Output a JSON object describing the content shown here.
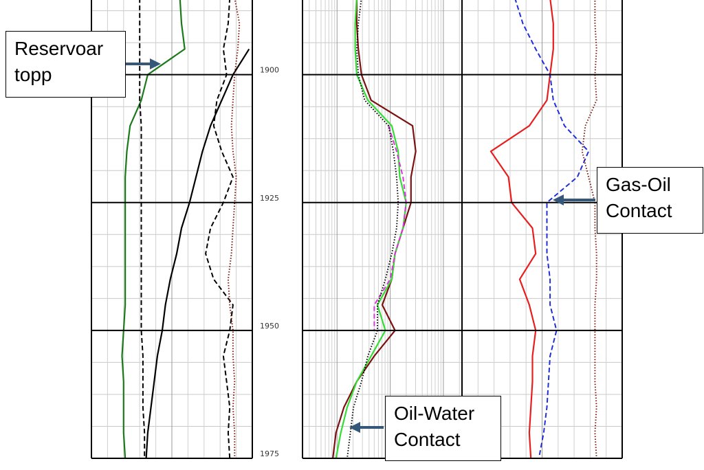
{
  "chart_data": {
    "type": "well-log",
    "ylim": [
      1975,
      1885
    ],
    "yticks": [
      1900,
      1925,
      1950,
      1975
    ],
    "grid": true,
    "depths": [
      1885,
      1890,
      1895,
      1900,
      1905,
      1910,
      1915,
      1920,
      1925,
      1930,
      1935,
      1940,
      1945,
      1950,
      1955,
      1960,
      1965,
      1970,
      1975
    ],
    "tracks": [
      {
        "xlim": [
          0,
          100
        ],
        "scale": "linear",
        "series": [
          {
            "color": "#1a7a1a",
            "style": "solid",
            "values": [
              55,
              56,
              58,
              35,
              31,
              24,
              22,
              21,
              21,
              21,
              21,
              21,
              21,
              20,
              19,
              20,
              20,
              20,
              21
            ]
          },
          {
            "color": "#000000",
            "style": "dashed",
            "values": [
              30,
              30,
              30,
              30,
              30,
              31,
              31,
              31,
              31,
              31,
              31,
              31,
              31,
              31,
              32,
              32,
              32,
              33,
              33
            ]
          },
          {
            "color": "#000000",
            "style": "solid",
            "values": [
              null,
              null,
              98,
              88,
              81,
              74,
              69,
              65,
              61,
              56,
              53,
              49,
              46,
              44,
              41,
              39,
              37,
              35,
              34
            ]
          },
          {
            "color": "#000000",
            "style": "dashed",
            "values": [
              86,
              85,
              82,
              84,
              78,
              76,
              81,
              88,
              82,
              74,
              71,
              76,
              88,
              86,
              82,
              84,
              86,
              85,
              86
            ]
          },
          {
            "color": "#7a1a10",
            "style": "dotted",
            "values": [
              89,
              92,
              91,
              89,
              88,
              87,
              88,
              90,
              89,
              88,
              87,
              85,
              86,
              88,
              88,
              89,
              88,
              89,
              89
            ]
          }
        ]
      },
      {
        "xlim": [
          0,
          100
        ],
        "scale": "log",
        "series": [
          {
            "color": "#7a1010",
            "style": "solid",
            "values": [
              34,
              34,
              35,
              37,
              43,
              69,
              71,
              68,
              68,
              63,
              58,
              56,
              50,
              58,
              45,
              34,
              26,
              21,
              19
            ]
          },
          {
            "color": "#33dd33",
            "style": "solid",
            "values": [
              34,
              33,
              33,
              34,
              41,
              56,
              60,
              61,
              65,
              63,
              58,
              56,
              47,
              52,
              43,
              34,
              28,
              24,
              21
            ]
          },
          {
            "color": "#dd33dd",
            "style": "dashed",
            "values": [
              null,
              null,
              null,
              null,
              null,
              54,
              59,
              63,
              65,
              63,
              58,
              55,
              45,
              45,
              null,
              null,
              null,
              null,
              null
            ]
          },
          {
            "color": "#000000",
            "style": "dotted",
            "values": [
              37,
              35,
              34,
              35,
              39,
              54,
              57,
              59,
              60,
              59,
              56,
              52,
              47,
              47,
              41,
              37,
              32,
              30,
              28
            ]
          }
        ]
      },
      {
        "xlim": [
          0,
          100
        ],
        "scale": "linear",
        "series": [
          {
            "color": "#e81e1e",
            "style": "solid",
            "values": [
              55,
              57,
              57,
              55,
              53,
              42,
              18,
              29,
              31,
              44,
              46,
              36,
              42,
              46,
              44,
              44,
              43,
              42,
              43
            ]
          },
          {
            "color": "#1f2fd8",
            "style": "dashed",
            "values": [
              33,
              38,
              46,
              55,
              57,
              64,
              79,
              72,
              53,
              53,
              53,
              55,
              55,
              59,
              55,
              54,
              53,
              51,
              48
            ]
          },
          {
            "color": "#7a1a10",
            "style": "dotted",
            "values": [
              83,
              83,
              84,
              83,
              84,
              77,
              75,
              79,
              83,
              83,
              84,
              84,
              83,
              83,
              83,
              83,
              84,
              83,
              84
            ]
          }
        ]
      }
    ],
    "annotations": [
      "Reservoar topp",
      "Gas-Oil Contact",
      "Oil-Water Contact"
    ]
  }
}
